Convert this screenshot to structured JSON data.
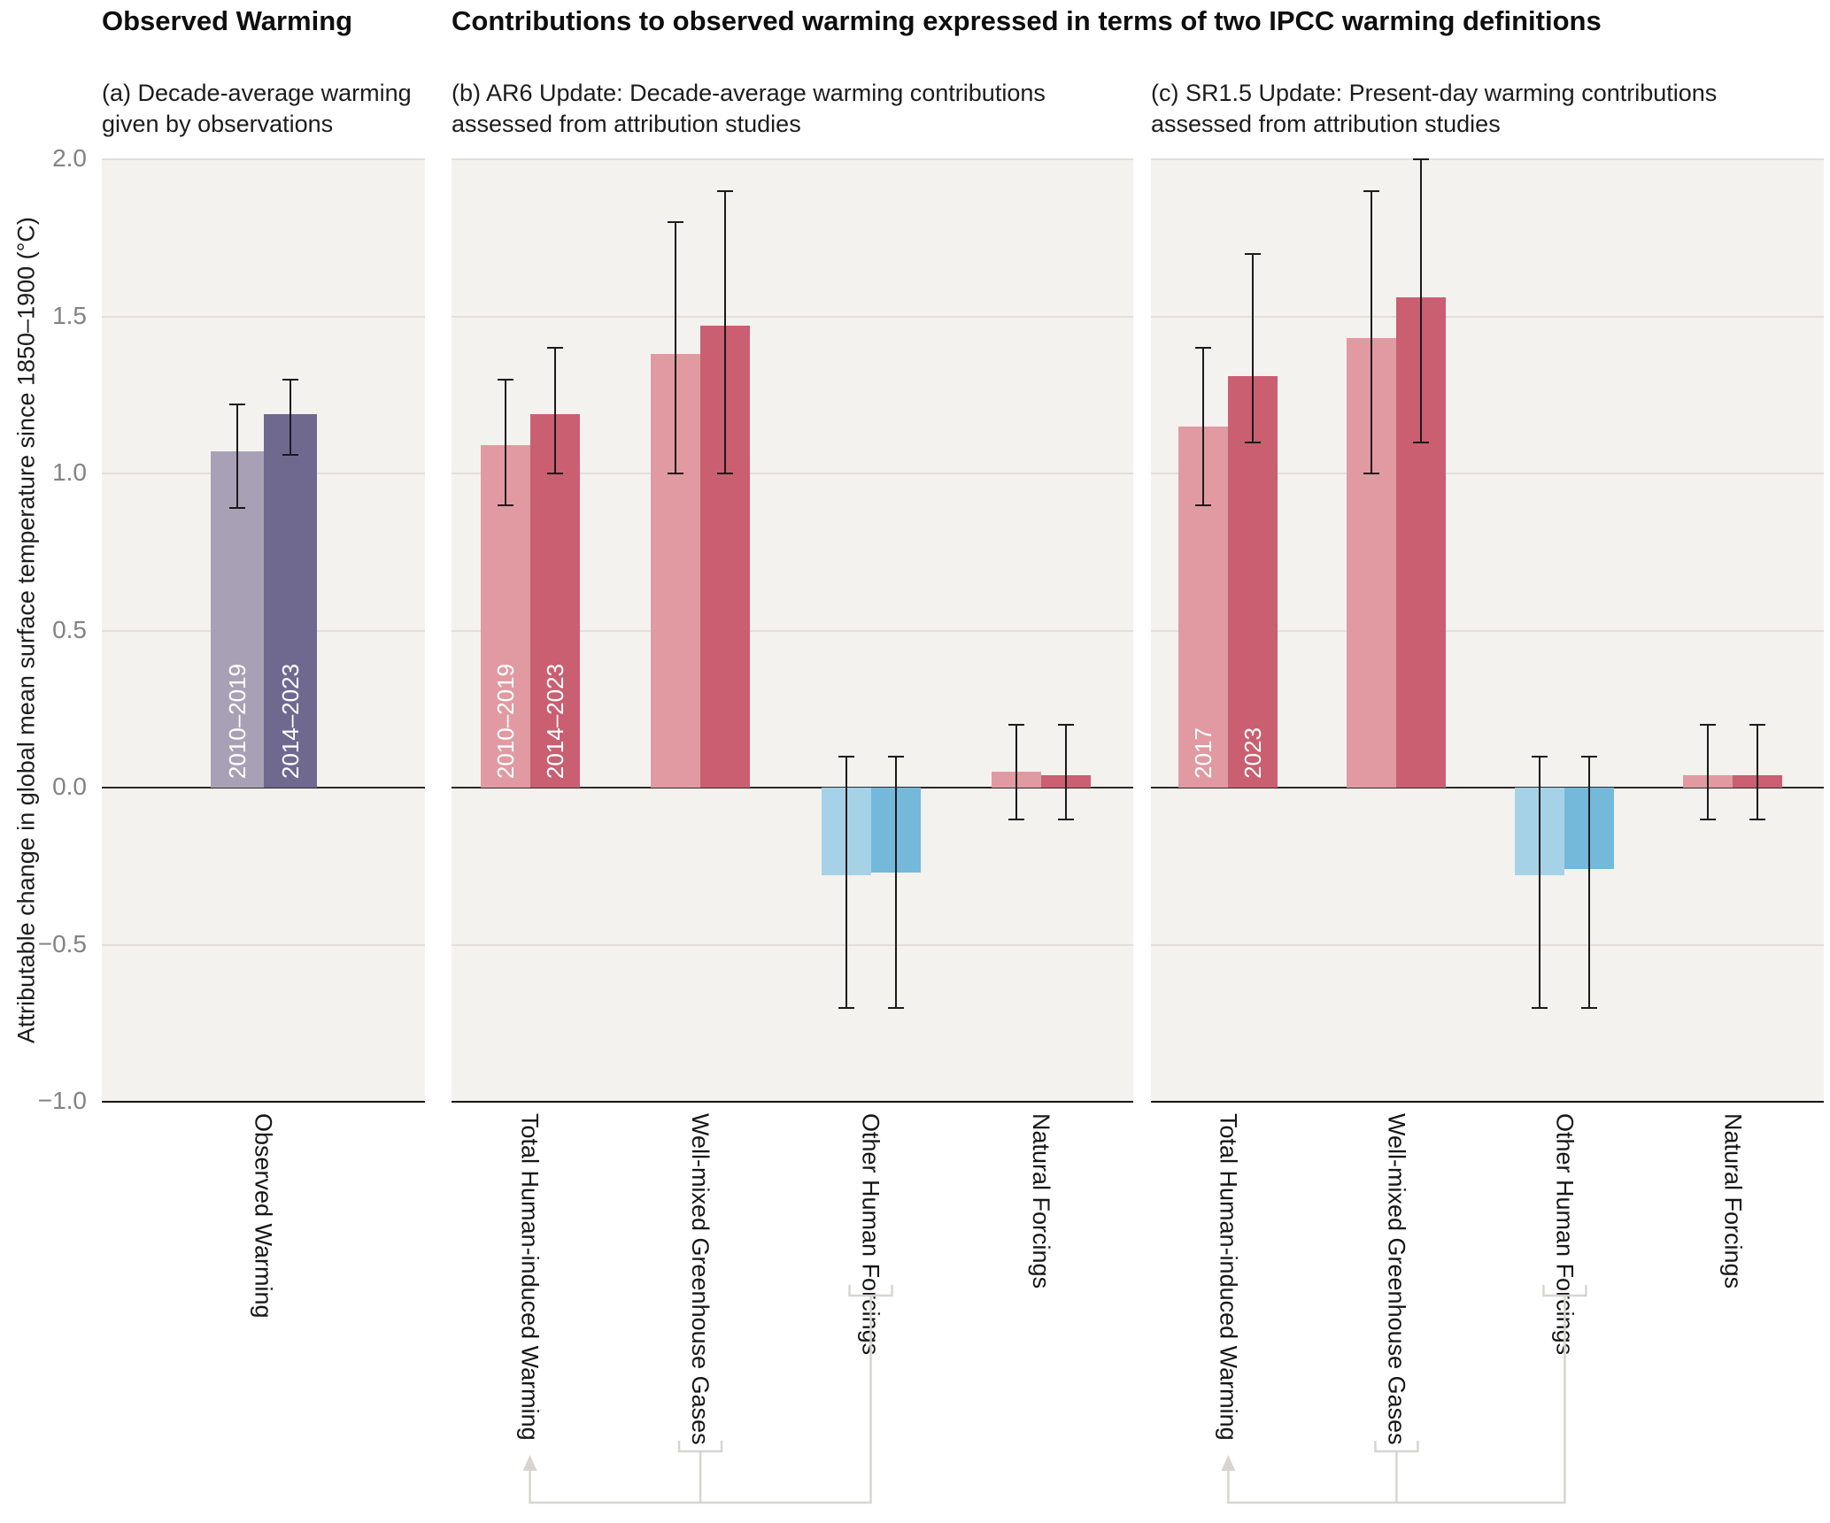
{
  "header": {
    "left_title": "Observed Warming",
    "right_title": "Contributions to observed warming expressed in terms of two IPCC warming definitions"
  },
  "yaxis": {
    "label": "Attributable change in global mean surface temperature since 1850–1900 (°C)",
    "ylim": [
      -1.0,
      2.0
    ],
    "ticks": [
      {
        "label": "2.0",
        "value": 2.0
      },
      {
        "label": "1.5",
        "value": 1.5
      },
      {
        "label": "1.0",
        "value": 1.0
      },
      {
        "label": "0.5",
        "value": 0.5
      },
      {
        "label": "0.0",
        "value": 0.0
      },
      {
        "label": "−0.5",
        "value": -0.5
      },
      {
        "label": "−1.0",
        "value": -1.0
      }
    ]
  },
  "colors": {
    "purple": [
      "#a8a1b6",
      "#6f6990"
    ],
    "red": [
      "#e19aa2",
      "#c95f70"
    ],
    "blue": [
      "#a6d2e7",
      "#74b8da"
    ],
    "error": "#1b1b1b",
    "annotation": "#d8d5d1",
    "panel_bg": "#f4f2ef"
  },
  "chart_data": [
    {
      "id": "a",
      "type": "bar",
      "subtitle": "(a) Decade-average warming given by observations",
      "series": [
        "2010–2019",
        "2014–2023"
      ],
      "categories": [
        {
          "label": "Observed Warming",
          "palette": "purple",
          "bar_labels": true,
          "values": [
            1.07,
            1.19
          ],
          "errors": [
            [
              0.89,
              1.22
            ],
            [
              1.06,
              1.3
            ]
          ]
        }
      ]
    },
    {
      "id": "b",
      "type": "bar",
      "subtitle": "(b) AR6 Update: Decade-average warming contributions assessed from attribution studies",
      "series": [
        "2010–2019",
        "2014–2023"
      ],
      "categories": [
        {
          "label": "Total Human-induced Warming",
          "palette": "red",
          "bar_labels": true,
          "values": [
            1.09,
            1.19
          ],
          "errors": [
            [
              0.9,
              1.3
            ],
            [
              1.0,
              1.4
            ]
          ]
        },
        {
          "label": "Well-mixed Greenhouse Gases",
          "palette": "red",
          "bar_labels": false,
          "values": [
            1.38,
            1.47
          ],
          "errors": [
            [
              1.0,
              1.8
            ],
            [
              1.0,
              1.9
            ]
          ]
        },
        {
          "label": "Other Human Forcings",
          "palette": "blue",
          "bar_labels": false,
          "values": [
            -0.28,
            -0.27
          ],
          "errors": [
            [
              -0.7,
              0.1
            ],
            [
              -0.7,
              0.1
            ]
          ]
        },
        {
          "label": "Natural Forcings",
          "palette": "red",
          "bar_labels": false,
          "values": [
            0.05,
            0.04
          ],
          "errors": [
            [
              -0.1,
              0.2
            ],
            [
              -0.1,
              0.2
            ]
          ]
        }
      ]
    },
    {
      "id": "c",
      "type": "bar",
      "subtitle": "(c) SR1.5 Update: Present-day warming contributions assessed from attribution studies",
      "series": [
        "2017",
        "2023"
      ],
      "categories": [
        {
          "label": "Total Human-induced Warming",
          "palette": "red",
          "bar_labels": true,
          "values": [
            1.15,
            1.31
          ],
          "errors": [
            [
              0.9,
              1.4
            ],
            [
              1.1,
              1.7
            ]
          ]
        },
        {
          "label": "Well-mixed Greenhouse Gases",
          "palette": "red",
          "bar_labels": false,
          "values": [
            1.43,
            1.56
          ],
          "errors": [
            [
              1.0,
              1.9
            ],
            [
              1.1,
              2.0
            ]
          ]
        },
        {
          "label": "Other Human Forcings",
          "palette": "blue",
          "bar_labels": false,
          "values": [
            -0.28,
            -0.26
          ],
          "errors": [
            [
              -0.7,
              0.1
            ],
            [
              -0.7,
              0.1
            ]
          ]
        },
        {
          "label": "Natural Forcings",
          "palette": "red",
          "bar_labels": false,
          "values": [
            0.04,
            0.04
          ],
          "errors": [
            [
              -0.1,
              0.2
            ],
            [
              -0.1,
              0.2
            ]
          ]
        }
      ]
    }
  ]
}
